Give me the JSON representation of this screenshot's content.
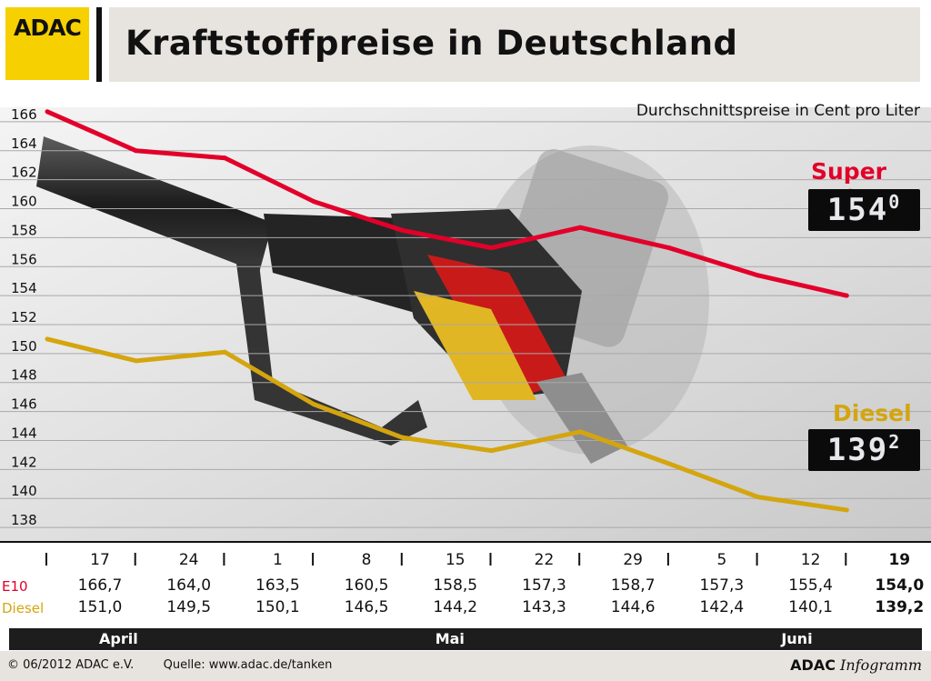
{
  "header": {
    "logo_text": "ADAC",
    "title": "Kraftstoffpreise in Deutschland",
    "logo_color": "#f6d000"
  },
  "chart_data": {
    "type": "line",
    "subtitle": "Durchschnittspreise in Cent pro Liter",
    "ylim": [
      137,
      167
    ],
    "yticks": [
      138,
      140,
      142,
      144,
      146,
      148,
      150,
      152,
      154,
      156,
      158,
      160,
      162,
      164,
      166
    ],
    "grid": true,
    "categories": [
      "17",
      "24",
      "1",
      "8",
      "15",
      "22",
      "29",
      "5",
      "12",
      "19"
    ],
    "series": [
      {
        "name": "Super E10",
        "row_label": "E10",
        "color": "#e2002a",
        "values": [
          166.7,
          164.0,
          163.5,
          160.5,
          158.5,
          157.3,
          158.7,
          157.3,
          155.4,
          154.0
        ],
        "labels": [
          "166,7",
          "164,0",
          "163,5",
          "160,5",
          "158,5",
          "157,3",
          "158,7",
          "157,3",
          "155,4",
          "154,0"
        ],
        "display_price": "154",
        "display_fraction": "0"
      },
      {
        "name": "Diesel",
        "row_label": "Diesel",
        "color": "#d4a50e",
        "values": [
          151.0,
          149.5,
          150.1,
          146.5,
          144.2,
          143.3,
          144.6,
          142.4,
          140.1,
          139.2
        ],
        "labels": [
          "151,0",
          "149,5",
          "150,1",
          "146,5",
          "144,2",
          "143,3",
          "144,6",
          "142,4",
          "140,1",
          "139,2"
        ],
        "display_price": "139",
        "display_fraction": "2"
      }
    ],
    "months": [
      {
        "label": "April",
        "span": [
          0,
          1
        ]
      },
      {
        "label": "Mai",
        "span": [
          2,
          6
        ]
      },
      {
        "label": "Juni",
        "span": [
          7,
          9
        ]
      }
    ]
  },
  "footer": {
    "copyright": "© 06/2012 ADAC e.V.",
    "source": "Quelle: www.adac.de/tanken",
    "brand_bold": "ADAC",
    "brand_italic": "Infogramm"
  }
}
